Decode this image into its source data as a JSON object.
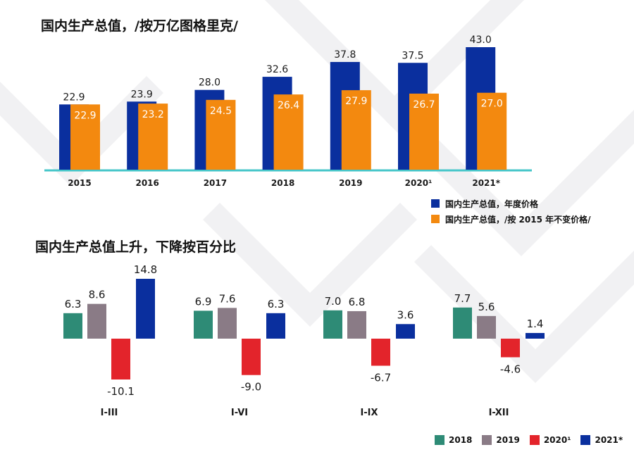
{
  "titles": {
    "chart1": "国内生产总值，/按万亿图格里克/",
    "chart2": "国内生产总值上升，下降按百分比"
  },
  "colors": {
    "blue": "#0a2f9e",
    "orange": "#f3890f",
    "teal": "#2e8b76",
    "gray": "#8a7b86",
    "red": "#e3242b",
    "navy": "#0a2f9e",
    "baseline": "#45c6c9"
  },
  "legend1": [
    {
      "label": "国内生产总值，年度价格",
      "color": "#0a2f9e"
    },
    {
      "label": "国内生产总值，/按 2015 年不变价格/",
      "color": "#f3890f"
    }
  ],
  "legend2": [
    {
      "label": "2018",
      "color": "#2e8b76"
    },
    {
      "label": "2019",
      "color": "#8a7b86"
    },
    {
      "label": "2020¹",
      "color": "#e3242b"
    },
    {
      "label": "2021*",
      "color": "#0a2f9e"
    }
  ],
  "chart_data": [
    {
      "type": "bar",
      "title": "国内生产总值，/按万亿图格里克/",
      "categories": [
        "2015",
        "2016",
        "2017",
        "2018",
        "2019",
        "2020¹",
        "2021*"
      ],
      "series": [
        {
          "name": "国内生产总值，年度价格",
          "values": [
            22.9,
            23.9,
            28.0,
            32.6,
            37.8,
            37.5,
            43.0
          ],
          "labels": [
            "22.9",
            "23.9",
            "28.0",
            "32.6",
            "37.8",
            "37.5",
            "43.0"
          ]
        },
        {
          "name": "国内生产总值，/按 2015 年不变价格/",
          "values": [
            22.9,
            23.2,
            24.5,
            26.4,
            27.9,
            26.7,
            27.0
          ],
          "labels": [
            "22.9",
            "23.2",
            "24.5",
            "26.4",
            "27.9",
            "26.7",
            "27.0"
          ]
        }
      ],
      "ylim": [
        0,
        45
      ],
      "grid": false,
      "legend_position": "bottom-right"
    },
    {
      "type": "bar",
      "title": "国内生产总值上升，下降按百分比",
      "categories": [
        "I-III",
        "I-VI",
        "I-IX",
        "I-XII"
      ],
      "series": [
        {
          "name": "2018",
          "values": [
            6.3,
            6.9,
            7.0,
            7.7
          ],
          "labels": [
            "6.3",
            "6.9",
            "7.0",
            "7.7"
          ]
        },
        {
          "name": "2019",
          "values": [
            8.6,
            7.6,
            6.8,
            5.6
          ],
          "labels": [
            "8.6",
            "7.6",
            "6.8",
            "5.6"
          ]
        },
        {
          "name": "2020¹",
          "values": [
            -10.1,
            -9.0,
            -6.7,
            -4.6
          ],
          "labels": [
            "-10.1",
            "-9.0",
            "-6.7",
            "-4.6"
          ]
        },
        {
          "name": "2021*",
          "values": [
            14.8,
            6.3,
            3.6,
            1.4
          ],
          "labels": [
            "14.8",
            "6.3",
            "3.6",
            "1.4"
          ]
        }
      ],
      "ylim": [
        -11,
        16
      ],
      "grid": false,
      "legend_position": "bottom-right"
    }
  ]
}
